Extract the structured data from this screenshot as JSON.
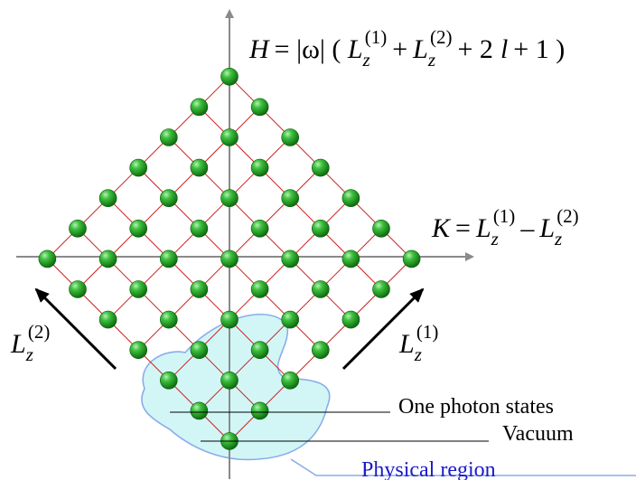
{
  "labels": {
    "h_axis": {
      "lhs": "H",
      "eq": "= |ω| ( ",
      "L": "L",
      "sub": "z",
      "sup1": "(1)",
      "plus": "+",
      "sup2": "(2)",
      "tail": "+ 2",
      "l": "l",
      "end": "+ 1 )"
    },
    "k_axis": {
      "lhs": "K",
      "eq": "=",
      "L": "L",
      "sub": "z",
      "sup1": "(1)",
      "minus": "–",
      "sup2": "(2)"
    },
    "left_arrow": {
      "L": "L",
      "sub": "z",
      "sup": "(2)"
    },
    "right_arrow": {
      "L": "L",
      "sub": "z",
      "sup": "(1)"
    },
    "one_photon_states": "One  photon states",
    "vacuum": "Vacuum",
    "physical_region": "Physical  region"
  },
  "colors": {
    "lattice_lines": "#cc2222",
    "node_fill": "#1f9a1f",
    "node_highlight": "#9ae69a",
    "axis": "#8a8a8a",
    "region_fill": "#d2f6f6",
    "region_stroke": "#8aaee8",
    "physical_region_text": "#1a1acc"
  },
  "lattice": {
    "rows": 7,
    "cols": 7
  }
}
